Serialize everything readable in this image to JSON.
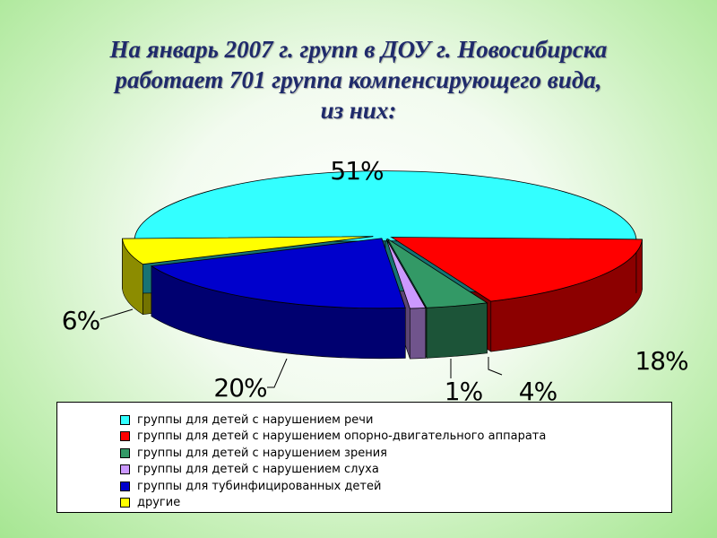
{
  "title": {
    "line1": "На январь 2007 г. групп в ДОУ г. Новосибирска",
    "line2": "работает 701 группа компенсирующего вида,",
    "line3": "из них:"
  },
  "chart_data": {
    "type": "pie",
    "style": "3d-exploded",
    "title": "На январь 2007 г. групп в ДОУ г. Новосибирска работает 701 группа компенсирующего вида, из них:",
    "legend_position": "bottom",
    "slices": [
      {
        "name": "группы для детей с нарушением речи",
        "value": 51,
        "label": "51%",
        "color": "#33FFFF"
      },
      {
        "name": "группы для детей с нарушением опорно-двигательного аппарата",
        "value": 18,
        "label": "18%",
        "color": "#FF0000"
      },
      {
        "name": "группы для детей с нарушением зрения",
        "value": 4,
        "label": "4%",
        "color": "#339966"
      },
      {
        "name": "группы для детей с нарушением слуха",
        "value": 1,
        "label": "1%",
        "color": "#CC99FF"
      },
      {
        "name": "группы для тубинфицированных детей",
        "value": 20,
        "label": "20%",
        "color": "#0000CC"
      },
      {
        "name": "другие",
        "value": 6,
        "label": "6%",
        "color": "#FFFF00"
      }
    ]
  }
}
